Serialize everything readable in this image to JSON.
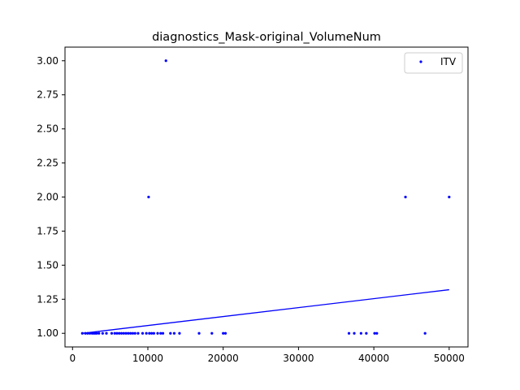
{
  "chart_data": {
    "type": "scatter",
    "title": "diagnostics_Mask-original_VolumeNum",
    "xlabel": "",
    "ylabel": "",
    "xlim": [
      -1000,
      52500
    ],
    "ylim": [
      0.9,
      3.1
    ],
    "xticks": [
      0,
      10000,
      20000,
      30000,
      40000,
      50000
    ],
    "yticks": [
      1.0,
      1.25,
      1.5,
      1.75,
      2.0,
      2.25,
      2.5,
      2.75,
      3.0
    ],
    "xtick_labels": [
      "0",
      "10000",
      "20000",
      "30000",
      "40000",
      "50000"
    ],
    "ytick_labels": [
      "1.00",
      "1.25",
      "1.50",
      "1.75",
      "2.00",
      "2.25",
      "2.50",
      "2.75",
      "3.00"
    ],
    "legend_position": "top-right",
    "grid": false,
    "series": [
      {
        "name": "ITV",
        "color": "#0000ff",
        "marker": "dot",
        "points": [
          [
            1300,
            1
          ],
          [
            1700,
            1
          ],
          [
            2000,
            1
          ],
          [
            2300,
            1
          ],
          [
            2600,
            1
          ],
          [
            2800,
            1
          ],
          [
            3000,
            1
          ],
          [
            3200,
            1
          ],
          [
            3500,
            1
          ],
          [
            4000,
            1
          ],
          [
            4500,
            1
          ],
          [
            5200,
            1
          ],
          [
            5600,
            1
          ],
          [
            5900,
            1
          ],
          [
            6200,
            1
          ],
          [
            6500,
            1
          ],
          [
            6800,
            1
          ],
          [
            7100,
            1
          ],
          [
            7400,
            1
          ],
          [
            7700,
            1
          ],
          [
            8000,
            1
          ],
          [
            8300,
            1
          ],
          [
            8700,
            1
          ],
          [
            9300,
            1
          ],
          [
            9800,
            1
          ],
          [
            10200,
            1
          ],
          [
            10500,
            1
          ],
          [
            10800,
            1
          ],
          [
            11300,
            1
          ],
          [
            11700,
            1
          ],
          [
            12000,
            1
          ],
          [
            13000,
            1
          ],
          [
            13500,
            1
          ],
          [
            14200,
            1
          ],
          [
            16800,
            1
          ],
          [
            18500,
            1
          ],
          [
            20000,
            1
          ],
          [
            20300,
            1
          ],
          [
            36700,
            1
          ],
          [
            37400,
            1
          ],
          [
            38300,
            1
          ],
          [
            39000,
            1
          ],
          [
            40100,
            1
          ],
          [
            40400,
            1
          ],
          [
            46800,
            1
          ],
          [
            10100,
            2
          ],
          [
            44200,
            2
          ],
          [
            50000,
            2
          ],
          [
            12400,
            3
          ]
        ]
      }
    ],
    "trend_line": {
      "color": "#0000ff",
      "x": [
        1300,
        50000
      ],
      "y": [
        1.0,
        1.32
      ]
    }
  }
}
